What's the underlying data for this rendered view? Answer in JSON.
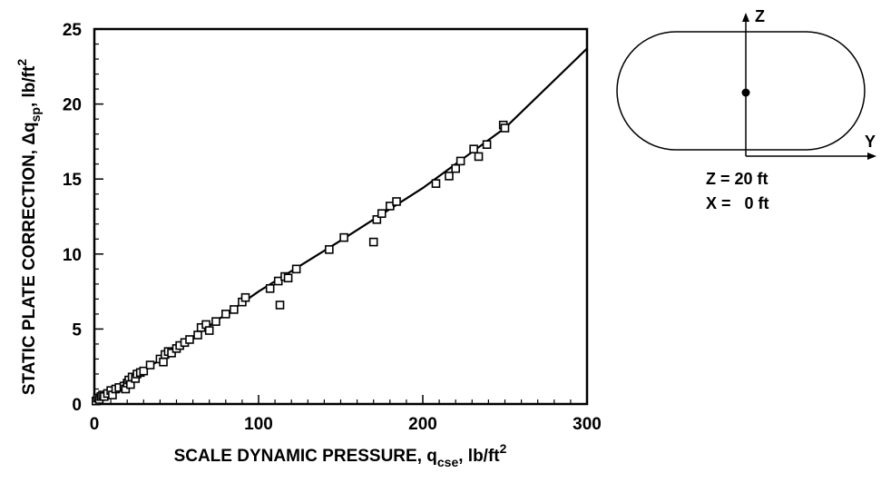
{
  "chart_data": {
    "type": "scatter",
    "xlabel": "SCALE DYNAMIC PRESSURE, q",
    "xlabel_sub": "cse",
    "xlabel_unit": ", lb/ft",
    "xlabel_sup": "2",
    "ylabel": "STATIC PLATE CORRECTION, Δq",
    "ylabel_sub": "sp",
    "ylabel_unit": ", lb/ft",
    "ylabel_sup": "2",
    "xlim": [
      0,
      300
    ],
    "ylim": [
      0,
      25
    ],
    "x_ticks": [
      0,
      100,
      200,
      300
    ],
    "y_ticks": [
      0,
      5,
      10,
      15,
      20,
      25
    ],
    "grid": false,
    "series": [
      {
        "marker": "open-square",
        "points": [
          [
            1,
            0.2
          ],
          [
            2,
            0.4
          ],
          [
            3,
            0.3
          ],
          [
            4,
            0.5
          ],
          [
            5,
            0.6
          ],
          [
            6,
            0.5
          ],
          [
            8,
            0.7
          ],
          [
            10,
            0.9
          ],
          [
            11,
            0.6
          ],
          [
            13,
            1.0
          ],
          [
            15,
            1.1
          ],
          [
            18,
            1.2
          ],
          [
            19,
            1.0
          ],
          [
            20,
            1.4
          ],
          [
            21,
            1.6
          ],
          [
            22,
            1.3
          ],
          [
            23,
            1.8
          ],
          [
            25,
            1.7
          ],
          [
            26,
            2.0
          ],
          [
            28,
            2.1
          ],
          [
            30,
            2.2
          ],
          [
            34,
            2.6
          ],
          [
            40,
            3.0
          ],
          [
            42,
            2.8
          ],
          [
            43,
            3.3
          ],
          [
            45,
            3.5
          ],
          [
            47,
            3.4
          ],
          [
            50,
            3.7
          ],
          [
            52,
            3.9
          ],
          [
            55,
            4.1
          ],
          [
            58,
            4.3
          ],
          [
            63,
            4.6
          ],
          [
            65,
            5.1
          ],
          [
            68,
            5.3
          ],
          [
            70,
            4.9
          ],
          [
            74,
            5.5
          ],
          [
            80,
            6.0
          ],
          [
            85,
            6.3
          ],
          [
            90,
            6.8
          ],
          [
            92,
            7.1
          ],
          [
            107,
            7.7
          ],
          [
            112,
            8.2
          ],
          [
            113,
            6.6
          ],
          [
            116,
            8.5
          ],
          [
            118,
            8.4
          ],
          [
            123,
            9.0
          ],
          [
            143,
            10.3
          ],
          [
            152,
            11.1
          ],
          [
            170,
            10.8
          ],
          [
            172,
            12.3
          ],
          [
            175,
            12.7
          ],
          [
            180,
            13.2
          ],
          [
            184,
            13.5
          ],
          [
            208,
            14.7
          ],
          [
            216,
            15.2
          ],
          [
            220,
            15.7
          ],
          [
            223,
            16.2
          ],
          [
            231,
            17.0
          ],
          [
            234,
            16.5
          ],
          [
            239,
            17.3
          ],
          [
            249,
            18.6
          ],
          [
            250,
            18.4
          ]
        ]
      }
    ],
    "fit_line": [
      [
        0,
        0
      ],
      [
        50,
        3.7
      ],
      [
        100,
        7.5
      ],
      [
        150,
        10.9
      ],
      [
        200,
        14.4
      ],
      [
        250,
        18.4
      ],
      [
        300,
        23.7
      ]
    ],
    "inset": {
      "axis_z_label": "Z",
      "axis_y_label": "Y",
      "line1": "Z = 20 ft",
      "line2": "X =   0 ft"
    }
  }
}
